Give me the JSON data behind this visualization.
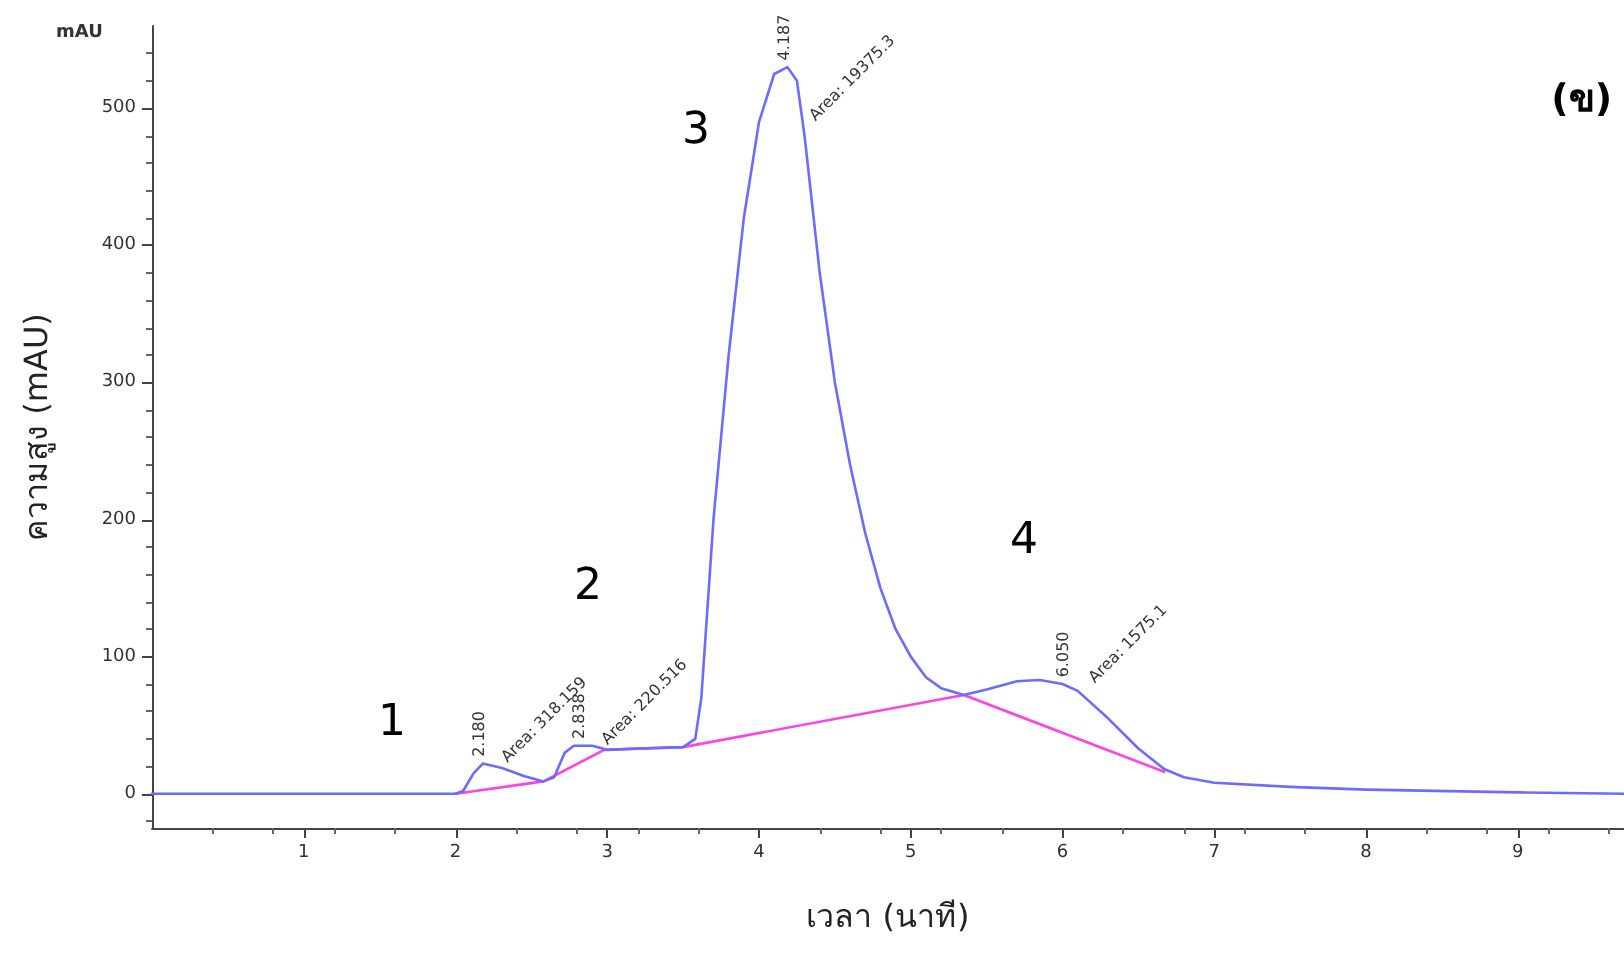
{
  "chart_data": {
    "type": "line",
    "xlabel": "เวลา (นาที)",
    "ylabel": "ความสูง (mAU)",
    "xlim": [
      0,
      9.7
    ],
    "xticks": [
      1,
      2,
      3,
      4,
      5,
      6,
      7,
      8,
      9
    ],
    "ylim": [
      -25,
      560
    ],
    "yticks": [
      0,
      100,
      200,
      300,
      400,
      500
    ],
    "grid": false,
    "marker": "none",
    "line_style": "solid",
    "series": [
      {
        "color": "#6b6bff",
        "x": [
          0,
          2.0,
          2.05,
          2.12,
          2.18,
          2.3,
          2.45,
          2.58,
          2.65,
          2.72,
          2.78,
          2.9,
          3.0,
          3.2,
          3.5,
          3.58,
          3.62,
          3.7,
          3.8,
          3.9,
          4.0,
          4.1,
          4.187,
          4.25,
          4.3,
          4.4,
          4.5,
          4.6,
          4.7,
          4.8,
          4.9,
          5.0,
          5.1,
          5.2,
          5.35,
          5.5,
          5.7,
          5.85,
          6.0,
          6.1,
          6.3,
          6.5,
          6.67,
          6.8,
          7.0,
          7.5,
          8.0,
          9.0,
          9.7
        ],
        "values": [
          0,
          0,
          2,
          15,
          22,
          19,
          13,
          9,
          12,
          30,
          35,
          35,
          32,
          33,
          34,
          40,
          70,
          200,
          320,
          420,
          490,
          525,
          530,
          520,
          480,
          380,
          300,
          240,
          190,
          150,
          120,
          100,
          85,
          77,
          72,
          76,
          82,
          83,
          80,
          75,
          55,
          33,
          18,
          12,
          8,
          5,
          3,
          1,
          0
        ]
      },
      {
        "color": "#ff44dd",
        "x": [
          2.0,
          2.58,
          2.98,
          3.5,
          5.35,
          6.67
        ],
        "values": [
          0,
          9,
          32,
          34,
          72,
          16
        ]
      }
    ],
    "annotations": [
      "mAU",
      "(ข)",
      "1",
      "2",
      "3",
      "4",
      {
        "text": "2.180",
        "x": 2.18,
        "y": 24
      },
      {
        "text": "Area: 318.159",
        "x": 2.2,
        "y": 22
      },
      {
        "text": "2.838",
        "x": 2.84,
        "y": 37
      },
      {
        "text": "Area: 220.516",
        "x": 2.86,
        "y": 35
      },
      {
        "text": "4.187",
        "x": 4.19,
        "y": 532
      },
      {
        "text": "Area: 19375.3",
        "x": 4.23,
        "y": 490
      },
      {
        "text": "6.050",
        "x": 6.03,
        "y": 82
      },
      {
        "text": "Area: 1575.1",
        "x": 6.07,
        "y": 80
      }
    ]
  }
}
